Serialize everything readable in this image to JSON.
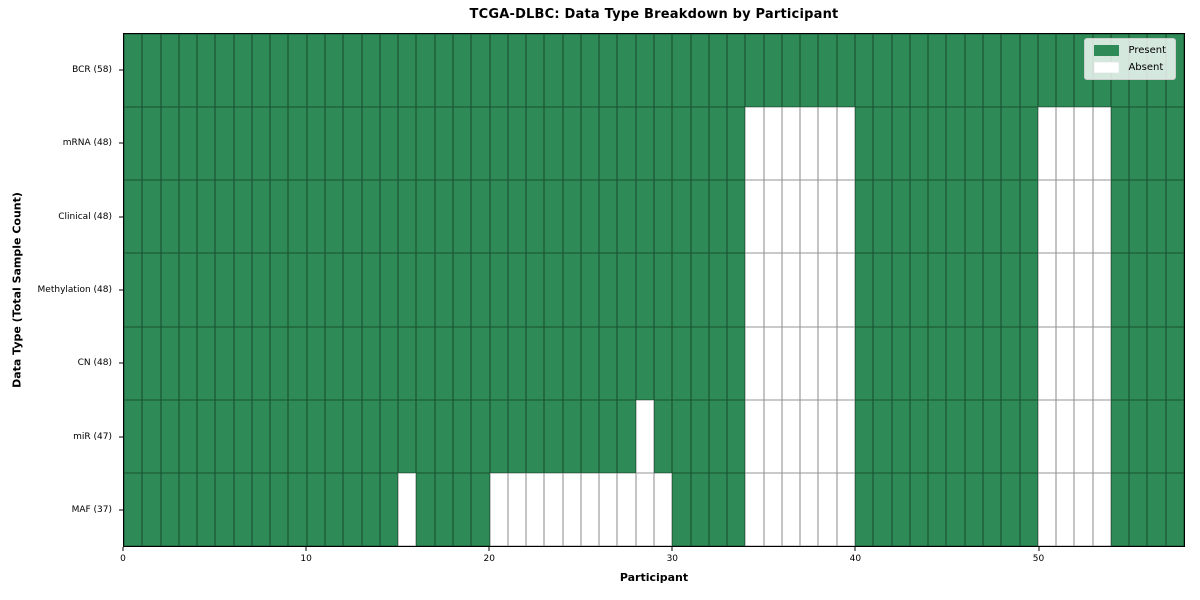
{
  "chart_data": {
    "type": "heatmap",
    "title": "TCGA-DLBC: Data Type Breakdown by Participant",
    "xlabel": "Participant",
    "ylabel": "Data Type (Total Sample Count)",
    "x_range": [
      0,
      58
    ],
    "x_ticks": [
      0,
      10,
      20,
      30,
      40,
      50
    ],
    "n_participants": 58,
    "grid": "on",
    "legend_position": "upper right",
    "legend_entries": [
      "Present",
      "Absent"
    ],
    "colors": {
      "present": "#2E8B57",
      "absent": "#ffffff",
      "grid_line": "rgba(0,0,0,0.42)",
      "spine": "#000000",
      "legend_background": "rgba(255,255,255,0.8)",
      "legend_border": "#cccccc"
    },
    "rows": [
      {
        "label": "BCR (58)",
        "data_type": "BCR",
        "present_count": 58,
        "absent_participants": []
      },
      {
        "label": "mRNA (48)",
        "data_type": "mRNA",
        "present_count": 48,
        "absent_participants": [
          34,
          35,
          36,
          37,
          38,
          39,
          50,
          51,
          52,
          53
        ]
      },
      {
        "label": "Clinical (48)",
        "data_type": "Clinical",
        "present_count": 48,
        "absent_participants": [
          34,
          35,
          36,
          37,
          38,
          39,
          50,
          51,
          52,
          53
        ]
      },
      {
        "label": "Methylation (48)",
        "data_type": "Methylation",
        "present_count": 48,
        "absent_participants": [
          34,
          35,
          36,
          37,
          38,
          39,
          50,
          51,
          52,
          53
        ]
      },
      {
        "label": "CN (48)",
        "data_type": "CN",
        "present_count": 48,
        "absent_participants": [
          34,
          35,
          36,
          37,
          38,
          39,
          50,
          51,
          52,
          53
        ]
      },
      {
        "label": "miR (47)",
        "data_type": "miR",
        "present_count": 47,
        "absent_participants": [
          28,
          34,
          35,
          36,
          37,
          38,
          39,
          50,
          51,
          52,
          53
        ]
      },
      {
        "label": "MAF (37)",
        "data_type": "MAF",
        "present_count": 37,
        "absent_participants": [
          15,
          20,
          21,
          22,
          23,
          24,
          25,
          26,
          27,
          28,
          29,
          34,
          35,
          36,
          37,
          38,
          39,
          50,
          51,
          52,
          53
        ]
      }
    ]
  }
}
